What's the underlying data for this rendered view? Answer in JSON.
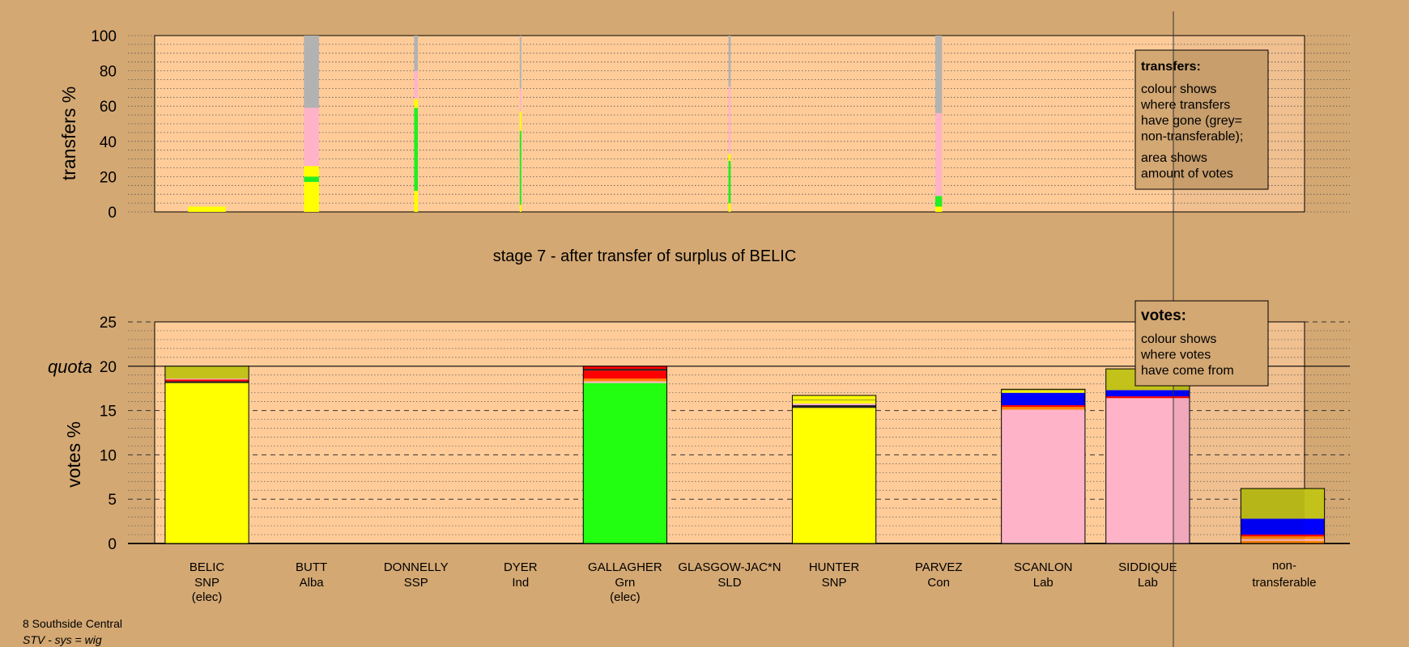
{
  "chart_data": [
    {
      "type": "bar",
      "subtype": "stacked-transfers",
      "ylabel": "transfers %",
      "ylim": [
        0,
        100
      ],
      "yticks": [
        0,
        20,
        40,
        60,
        80,
        100
      ],
      "legend": {
        "title": "transfers:",
        "lines1": [
          "colour shows",
          "where transfers",
          "have gone (grey=",
          "non-transferable);"
        ],
        "lines2": [
          "area shows",
          "amount of votes"
        ]
      },
      "bars": [
        {
          "candidate": "BELIC",
          "width_pct": 0.5,
          "segments": [
            {
              "color": "#ffff00",
              "from": 0,
              "to": 3
            }
          ]
        },
        {
          "candidate": "BUTT",
          "width_pct": 0.2,
          "segments": [
            {
              "color": "#ffff00",
              "from": 0,
              "to": 17
            },
            {
              "color": "#22ee22",
              "from": 17,
              "to": 20
            },
            {
              "color": "#ffff00",
              "from": 20,
              "to": 26
            },
            {
              "color": "#ffb3c8",
              "from": 26,
              "to": 59
            },
            {
              "color": "#b2b2b2",
              "from": 59,
              "to": 100
            }
          ]
        },
        {
          "candidate": "DONNELLY",
          "width_pct": 0.05,
          "segments": [
            {
              "color": "#ffff00",
              "from": 0,
              "to": 12
            },
            {
              "color": "#22ee22",
              "from": 12,
              "to": 59
            },
            {
              "color": "#ffff00",
              "from": 59,
              "to": 64
            },
            {
              "color": "#ffb3c8",
              "from": 64,
              "to": 80
            },
            {
              "color": "#b2b2b2",
              "from": 80,
              "to": 100
            }
          ]
        },
        {
          "candidate": "DYER",
          "width_pct": 0.015,
          "segments": [
            {
              "color": "#ffff00",
              "from": 0,
              "to": 4
            },
            {
              "color": "#22ee22",
              "from": 4,
              "to": 46
            },
            {
              "color": "#ffff00",
              "from": 46,
              "to": 57
            },
            {
              "color": "#ffb3c8",
              "from": 57,
              "to": 70
            },
            {
              "color": "#b2b2b2",
              "from": 70,
              "to": 100
            }
          ]
        },
        {
          "candidate": "GLASGOW-JAC*N",
          "width_pct": 0.03,
          "segments": [
            {
              "color": "#ffff00",
              "from": 0,
              "to": 5
            },
            {
              "color": "#22ee22",
              "from": 5,
              "to": 29
            },
            {
              "color": "#ffff00",
              "from": 29,
              "to": 33
            },
            {
              "color": "#ffb3c8",
              "from": 33,
              "to": 71
            },
            {
              "color": "#b2b2b2",
              "from": 71,
              "to": 100
            }
          ]
        },
        {
          "candidate": "PARVEZ",
          "width_pct": 0.09,
          "segments": [
            {
              "color": "#ffff00",
              "from": 0,
              "to": 3
            },
            {
              "color": "#22ee22",
              "from": 3,
              "to": 9
            },
            {
              "color": "#ffb3c8",
              "from": 9,
              "to": 56
            },
            {
              "color": "#b2b2b2",
              "from": 56,
              "to": 100
            }
          ]
        }
      ]
    },
    {
      "type": "bar",
      "subtype": "stacked-votes",
      "title": "stage 7 - after transfer of surplus of BELIC",
      "ylabel": "votes %",
      "ylim": [
        0,
        25
      ],
      "yticks": [
        0,
        5,
        10,
        15,
        20,
        25
      ],
      "quota": 20,
      "quota_label": "quota",
      "legend": {
        "title": "votes:",
        "lines": [
          "colour shows",
          "where votes",
          "have come from"
        ]
      },
      "candidates": [
        {
          "name": "BELIC",
          "party": "SNP",
          "status": "(elec)",
          "segments": [
            {
              "color": "#ffff00",
              "from": 0,
              "to": 18.1
            },
            {
              "color": "#222222",
              "from": 18.1,
              "to": 18.3
            },
            {
              "color": "#ff0000",
              "from": 18.3,
              "to": 18.5
            },
            {
              "color": "#ffb3c8",
              "from": 18.5,
              "to": 18.6
            },
            {
              "color": "#c2c21a",
              "from": 18.6,
              "to": 20.0
            }
          ]
        },
        {
          "name": "BUTT",
          "party": "Alba",
          "status": "",
          "segments": []
        },
        {
          "name": "DONNELLY",
          "party": "SSP",
          "status": "",
          "segments": []
        },
        {
          "name": "DYER",
          "party": "Ind",
          "status": "",
          "segments": []
        },
        {
          "name": "GALLAGHER",
          "party": "Grn",
          "status": "(elec)",
          "segments": [
            {
              "color": "#22ff11",
              "from": 0,
              "to": 18.1
            },
            {
              "color": "#ffb3c8",
              "from": 18.1,
              "to": 18.3
            },
            {
              "color": "#ff8800",
              "from": 18.3,
              "to": 18.6
            },
            {
              "color": "#ff0000",
              "from": 18.6,
              "to": 19.5
            },
            {
              "color": "#222222",
              "from": 19.5,
              "to": 19.7
            },
            {
              "color": "#ff0000",
              "from": 19.7,
              "to": 20.0
            }
          ]
        },
        {
          "name": "GLASGOW-JAC*N",
          "party": "SLD",
          "status": "",
          "segments": []
        },
        {
          "name": "HUNTER",
          "party": "SNP",
          "status": "",
          "segments": [
            {
              "color": "#ffff00",
              "from": 0,
              "to": 15.3
            },
            {
              "color": "#222222",
              "from": 15.3,
              "to": 15.6
            },
            {
              "color": "#ffb3c8",
              "from": 15.6,
              "to": 15.8
            },
            {
              "color": "#ffff00",
              "from": 15.8,
              "to": 16.1
            },
            {
              "color": "#c2c21a",
              "from": 16.1,
              "to": 16.3
            },
            {
              "color": "#ffff00",
              "from": 16.3,
              "to": 16.7
            }
          ]
        },
        {
          "name": "PARVEZ",
          "party": "Con",
          "status": "",
          "segments": []
        },
        {
          "name": "SCANLON",
          "party": "Lab",
          "status": "",
          "segments": [
            {
              "color": "#ffb3c8",
              "from": 0,
              "to": 15.1
            },
            {
              "color": "#ff8800",
              "from": 15.1,
              "to": 15.4
            },
            {
              "color": "#ff0000",
              "from": 15.4,
              "to": 15.6
            },
            {
              "color": "#0000ff",
              "from": 15.6,
              "to": 17.0
            },
            {
              "color": "#ffff00",
              "from": 17.0,
              "to": 17.2
            },
            {
              "color": "#c2c21a",
              "from": 17.2,
              "to": 17.4
            }
          ]
        },
        {
          "name": "SIDDIQUE",
          "party": "Lab",
          "status": "",
          "segments": [
            {
              "color": "#ffb3c8",
              "from": 0,
              "to": 16.4
            },
            {
              "color": "#ff0000",
              "from": 16.4,
              "to": 16.6
            },
            {
              "color": "#0000ff",
              "from": 16.6,
              "to": 17.3
            },
            {
              "color": "#c2c21a",
              "from": 17.3,
              "to": 19.7
            }
          ]
        }
      ],
      "nontransferable": {
        "label1": "non-",
        "label2": "transferable",
        "segments": [
          {
            "color": "#ff8800",
            "from": 0,
            "to": 0.3
          },
          {
            "color": "#ffb3c8",
            "from": 0.3,
            "to": 0.5
          },
          {
            "color": "#ff8800",
            "from": 0.5,
            "to": 0.8
          },
          {
            "color": "#ff0000",
            "from": 0.8,
            "to": 1.0
          },
          {
            "color": "#0000ff",
            "from": 1.0,
            "to": 2.8
          },
          {
            "color": "#c2c21a",
            "from": 2.8,
            "to": 6.2
          }
        ]
      }
    }
  ],
  "footer": {
    "ward": "8 Southside Central",
    "system": "STV - sys = wig"
  },
  "colors": {
    "background": "#d4a873",
    "plot": "#ffcc99"
  }
}
